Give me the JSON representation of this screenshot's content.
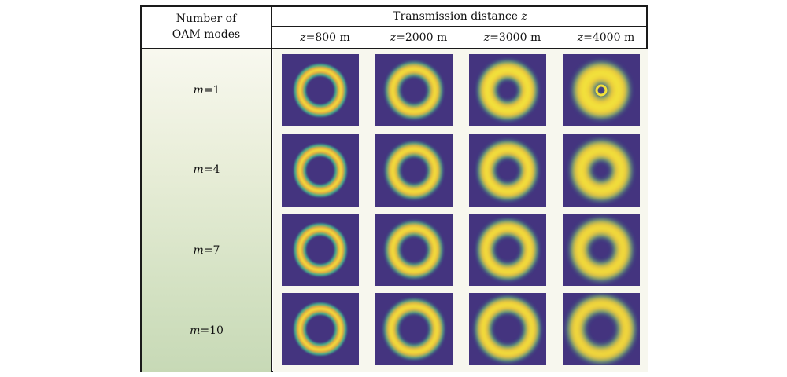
{
  "header": {
    "row_header_line1": "Number of",
    "row_header_line2": "OAM modes",
    "column_group_label_prefix": "Transmission distance ",
    "column_group_label_var": "z",
    "distances": [
      {
        "var": "z",
        "value": "=800 m"
      },
      {
        "var": "z",
        "value": "=2000 m"
      },
      {
        "var": "z",
        "value": "=3000 m"
      },
      {
        "var": "z",
        "value": "=4000 m"
      }
    ]
  },
  "rows": [
    {
      "var": "m",
      "value": "=1"
    },
    {
      "var": "m",
      "value": "=4"
    },
    {
      "var": "m",
      "value": "=7"
    },
    {
      "var": "m",
      "value": "=10"
    }
  ],
  "colors": {
    "background": "#44347f",
    "ring_peak": "#f2e13a",
    "ring_mid": "#f0a83a",
    "ring_edge": "#3fbf93"
  }
}
